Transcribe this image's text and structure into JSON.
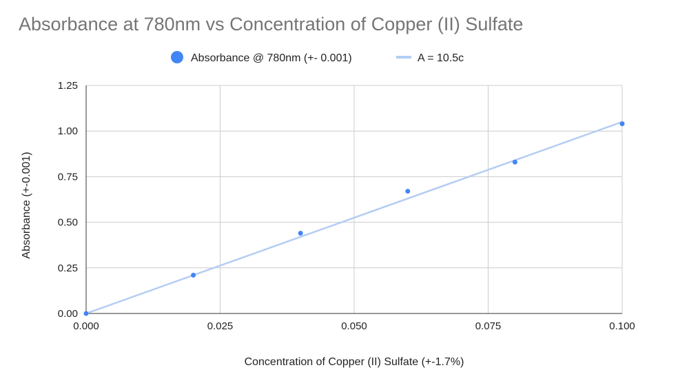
{
  "chart_data": {
    "type": "scatter",
    "title": "Absorbance at 780nm vs Concentration of Copper (II) Sulfate",
    "xlabel": "Concentration of Copper (II) Sulfate (+-1.7%)",
    "ylabel": "Absorbance (+-0.001)",
    "xlim": [
      0,
      0.1
    ],
    "ylim": [
      0,
      1.25
    ],
    "x_ticks": [
      "0.000",
      "0.025",
      "0.050",
      "0.075",
      "0.100"
    ],
    "y_ticks": [
      "0.00",
      "0.25",
      "0.50",
      "0.75",
      "1.00",
      "1.25"
    ],
    "grid": true,
    "legend_position": "top",
    "series": [
      {
        "name": "Absorbance @ 780nm (+- 0.001)",
        "color": "#4285f4",
        "points": [
          {
            "x": 0.0,
            "y": 0.0
          },
          {
            "x": 0.02,
            "y": 0.21
          },
          {
            "x": 0.04,
            "y": 0.44
          },
          {
            "x": 0.06,
            "y": 0.67
          },
          {
            "x": 0.08,
            "y": 0.83
          },
          {
            "x": 0.1,
            "y": 1.04
          }
        ]
      }
    ],
    "trendline": {
      "name": "A = 10.5c",
      "color": "#b4cdf3",
      "slope": 10.5,
      "intercept": 0
    }
  }
}
